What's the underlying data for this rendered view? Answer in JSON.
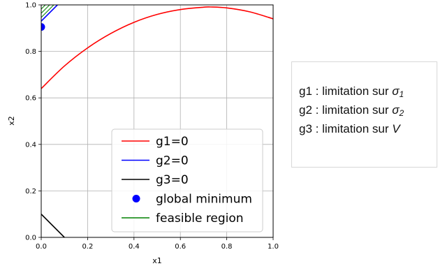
{
  "chart_data": {
    "type": "line",
    "xlabel": "x1",
    "ylabel": "x2",
    "xlim": [
      0,
      1
    ],
    "ylim": [
      0,
      1
    ],
    "xticks": [
      "0.0",
      "0.2",
      "0.4",
      "0.6",
      "0.8",
      "1.0"
    ],
    "yticks": [
      "0.0",
      "0.2",
      "0.4",
      "0.6",
      "0.8",
      "1.0"
    ],
    "grid": true,
    "legend_position": "lower-right",
    "series": [
      {
        "name": "g1=0",
        "color": "#ff0000",
        "points": [
          [
            0,
            0.64
          ],
          [
            0.1,
            0.737
          ],
          [
            0.2,
            0.815
          ],
          [
            0.3,
            0.877
          ],
          [
            0.4,
            0.925
          ],
          [
            0.5,
            0.959
          ],
          [
            0.6,
            0.98
          ],
          [
            0.7,
            0.99
          ],
          [
            0.73,
            0.991
          ],
          [
            0.8,
            0.987
          ],
          [
            0.9,
            0.97
          ],
          [
            1.0,
            0.94
          ]
        ]
      },
      {
        "name": "g2=0",
        "color": "#0000ff",
        "points": [
          [
            0,
            0.93
          ],
          [
            0.07,
            1.0
          ]
        ]
      },
      {
        "name": "g3=0",
        "color": "#000000",
        "points": [
          [
            0,
            0.1
          ],
          [
            0.1,
            0.0
          ]
        ]
      }
    ],
    "global_minimum": {
      "name": "global minimum",
      "color": "#0000ff",
      "point": [
        0,
        0.905
      ]
    },
    "feasible_region": {
      "name": "feasible region",
      "color": "#008000",
      "polygon": [
        [
          0,
          0.93
        ],
        [
          0.07,
          1.0
        ],
        [
          0,
          1.0
        ]
      ]
    },
    "legend": [
      {
        "label": "g1=0",
        "color": "#ff0000",
        "marker": "line"
      },
      {
        "label": "g2=0",
        "color": "#0000ff",
        "marker": "line"
      },
      {
        "label": "g3=0",
        "color": "#000000",
        "marker": "line"
      },
      {
        "label": "global minimum",
        "color": "#0000ff",
        "marker": "dot"
      },
      {
        "label": "feasible region",
        "color": "#008000",
        "marker": "line"
      }
    ]
  },
  "constraints": [
    {
      "prefix": "g1 : limitation sur ",
      "symbol": "σ",
      "subscript": "1"
    },
    {
      "prefix": "g2 : limitation sur ",
      "symbol": "σ",
      "subscript": "2"
    },
    {
      "prefix": "g3 : limitation sur ",
      "symbol": "V",
      "subscript": ""
    }
  ]
}
